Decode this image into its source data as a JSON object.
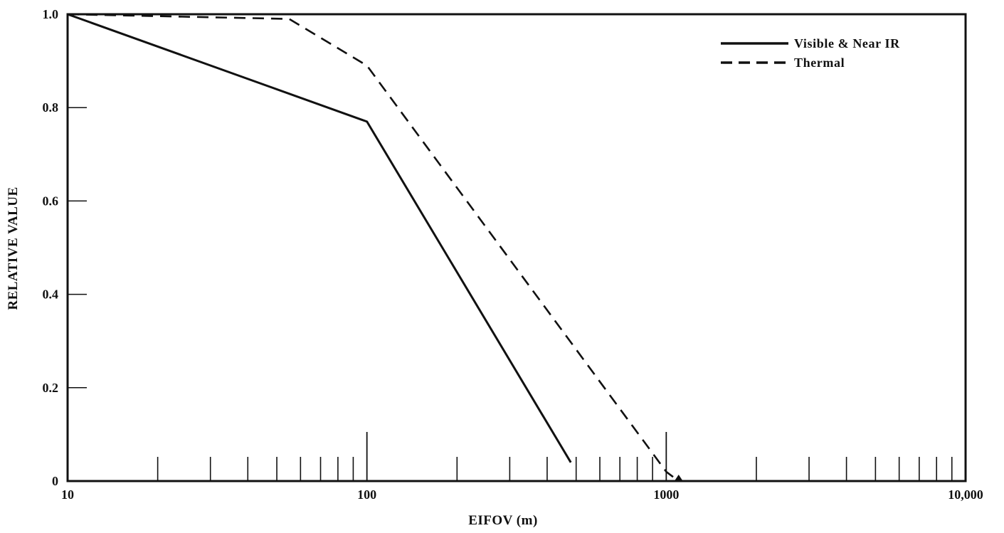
{
  "chart_data": {
    "type": "line",
    "title": "",
    "xlabel": "EIFOV (m)",
    "ylabel": "RELATIVE VALUE",
    "x_scale": "log",
    "xlim": [
      10,
      10000
    ],
    "ylim": [
      0,
      1.0
    ],
    "x_tick_labels": [
      "10",
      "100",
      "1000",
      "10,000"
    ],
    "y_tick_labels": [
      "0",
      "0.2",
      "0.4",
      "0.6",
      "0.8",
      "1.0"
    ],
    "legend_position": "top-right",
    "grid": false,
    "series": [
      {
        "name": "Visible & Near IR",
        "style": "solid",
        "color": "#111111",
        "points": [
          [
            10,
            1.0
          ],
          [
            100,
            0.77
          ],
          [
            480,
            0.04
          ]
        ]
      },
      {
        "name": "Thermal",
        "style": "dashed",
        "color": "#111111",
        "points": [
          [
            10,
            1.0
          ],
          [
            55,
            0.99
          ],
          [
            100,
            0.89
          ],
          [
            1000,
            0.02
          ],
          [
            1100,
            0.0
          ]
        ]
      }
    ]
  }
}
